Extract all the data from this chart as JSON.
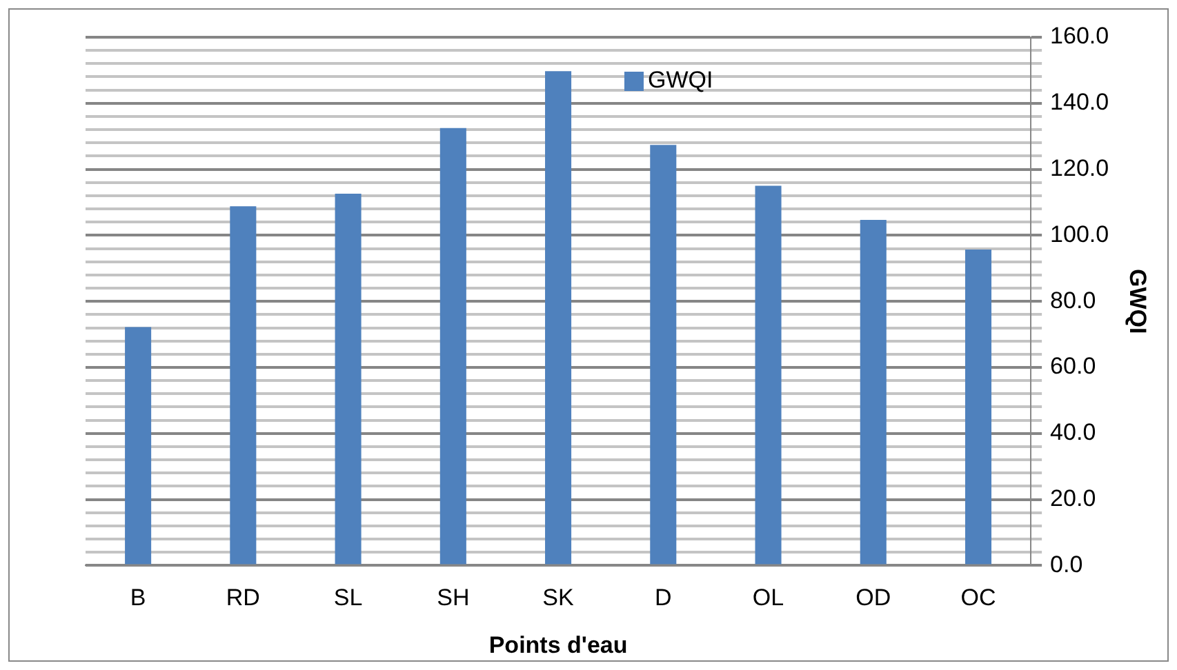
{
  "chart_data": {
    "type": "bar",
    "xlabel": "Points d'eau",
    "ylabel": "GWQI",
    "categories": [
      "B",
      "RD",
      "SL",
      "SH",
      "SK",
      "D",
      "OL",
      "OD",
      "OC"
    ],
    "series": [
      {
        "name": "GWQI",
        "color": "#4f81bd",
        "values": [
          72.2,
          108.8,
          112.6,
          132.5,
          149.7,
          127.4,
          115,
          104.7,
          95.7
        ]
      }
    ],
    "ylim": [
      0,
      160
    ],
    "yticks": [
      {
        "value": 0,
        "label": "0.0"
      },
      {
        "value": 4,
        "label": null
      },
      {
        "value": 8,
        "label": null
      },
      {
        "value": 12,
        "label": null
      },
      {
        "value": 16,
        "label": null
      },
      {
        "value": 20,
        "label": "20.0"
      },
      {
        "value": 24,
        "label": null
      },
      {
        "value": 28,
        "label": null
      },
      {
        "value": 32,
        "label": null
      },
      {
        "value": 36,
        "label": null
      },
      {
        "value": 40,
        "label": "40.0"
      },
      {
        "value": 44,
        "label": null
      },
      {
        "value": 48,
        "label": null
      },
      {
        "value": 52,
        "label": null
      },
      {
        "value": 56,
        "label": null
      },
      {
        "value": 60,
        "label": "60.0"
      },
      {
        "value": 64,
        "label": null
      },
      {
        "value": 68,
        "label": null
      },
      {
        "value": 72,
        "label": null
      },
      {
        "value": 76,
        "label": null
      },
      {
        "value": 80,
        "label": "80.0"
      },
      {
        "value": 84,
        "label": null
      },
      {
        "value": 88,
        "label": null
      },
      {
        "value": 92,
        "label": null
      },
      {
        "value": 96,
        "label": null
      },
      {
        "value": 100,
        "label": "100.0"
      },
      {
        "value": 104,
        "label": null
      },
      {
        "value": 108,
        "label": null
      },
      {
        "value": 112,
        "label": null
      },
      {
        "value": 116,
        "label": null
      },
      {
        "value": 120,
        "label": "120.0"
      },
      {
        "value": 124,
        "label": null
      },
      {
        "value": 128,
        "label": null
      },
      {
        "value": 132,
        "label": null
      },
      {
        "value": 136,
        "label": null
      },
      {
        "value": 140,
        "label": "140.0"
      },
      {
        "value": 144,
        "label": null
      },
      {
        "value": 148,
        "label": null
      },
      {
        "value": 152,
        "label": null
      },
      {
        "value": 156,
        "label": null
      },
      {
        "value": 160,
        "label": "160.0"
      }
    ],
    "grid": "y",
    "legend": "top"
  }
}
